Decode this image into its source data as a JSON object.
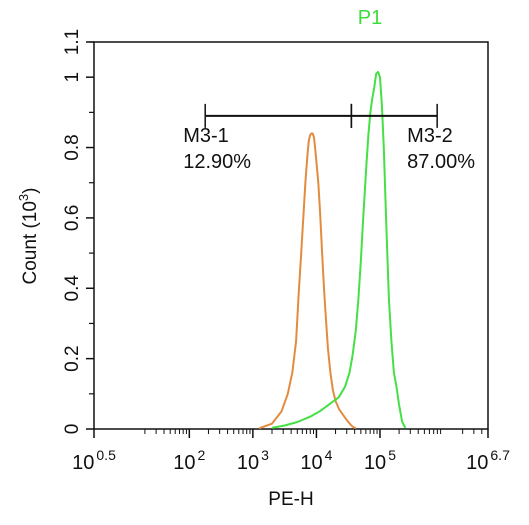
{
  "chart_data": {
    "type": "line",
    "title": "P1",
    "xlabel": "PE-H",
    "ylabel": "Count",
    "ylabel_exponent": "3",
    "x_scale": "log",
    "xlim": [
      0.5,
      6.7
    ],
    "ylim": [
      0,
      1.1
    ],
    "y_ticks": [
      "0",
      "0.2",
      "0.4",
      "0.6",
      "0.8",
      "1",
      "1.1"
    ],
    "y_tick_values": [
      0,
      0.2,
      0.4,
      0.6,
      0.8,
      1.0,
      1.1
    ],
    "x_ticks": [
      {
        "base": "10",
        "exp": "0.5",
        "value": 0.5
      },
      {
        "base": "10",
        "exp": "2",
        "value": 2
      },
      {
        "base": "10",
        "exp": "3",
        "value": 3
      },
      {
        "base": "10",
        "exp": "4",
        "value": 4
      },
      {
        "base": "10",
        "exp": "5",
        "value": 5
      },
      {
        "base": "10",
        "exp": "6.7",
        "value": 6.7
      }
    ],
    "grid": false,
    "colors": {
      "title": "#3ddc3d"
    },
    "series": [
      {
        "color": "#e38b3f",
        "x": [
          3.1,
          3.3,
          3.45,
          3.55,
          3.62,
          3.68,
          3.72,
          3.76,
          3.8,
          3.83,
          3.86,
          3.88,
          3.9,
          3.92,
          3.94,
          3.96,
          3.98,
          4.0,
          4.03,
          4.06,
          4.09,
          4.12,
          4.15,
          4.18,
          4.22,
          4.26,
          4.3,
          4.36,
          4.42,
          4.48,
          4.54,
          4.58,
          4.62
        ],
        "values": [
          0.002,
          0.015,
          0.05,
          0.1,
          0.16,
          0.25,
          0.38,
          0.5,
          0.62,
          0.71,
          0.78,
          0.82,
          0.835,
          0.84,
          0.84,
          0.83,
          0.8,
          0.76,
          0.7,
          0.61,
          0.5,
          0.4,
          0.31,
          0.23,
          0.16,
          0.11,
          0.08,
          0.055,
          0.04,
          0.025,
          0.012,
          0.005,
          0.002
        ]
      },
      {
        "color": "#44e044",
        "x": [
          3.3,
          3.5,
          3.7,
          3.9,
          4.05,
          4.2,
          4.35,
          4.45,
          4.52,
          4.57,
          4.62,
          4.66,
          4.7,
          4.73,
          4.76,
          4.79,
          4.82,
          4.85,
          4.88,
          4.91,
          4.94,
          4.97,
          5.0,
          5.03,
          5.06,
          5.1,
          5.14,
          5.18,
          5.22,
          5.26,
          5.3,
          5.35,
          5.4
        ],
        "values": [
          0.003,
          0.01,
          0.02,
          0.035,
          0.05,
          0.07,
          0.09,
          0.12,
          0.16,
          0.21,
          0.28,
          0.37,
          0.48,
          0.58,
          0.67,
          0.76,
          0.84,
          0.9,
          0.94,
          0.97,
          1.01,
          1.015,
          1.0,
          0.92,
          0.8,
          0.58,
          0.37,
          0.25,
          0.16,
          0.12,
          0.07,
          0.02,
          0.003
        ]
      }
    ],
    "markers": [
      {
        "name": "M3-1",
        "percent": "12.90%",
        "x_start": 2.25,
        "x_end": 4.55
      },
      {
        "name": "M3-2",
        "percent": "87.00%",
        "x_start": 4.55,
        "x_end": 5.9
      }
    ]
  }
}
